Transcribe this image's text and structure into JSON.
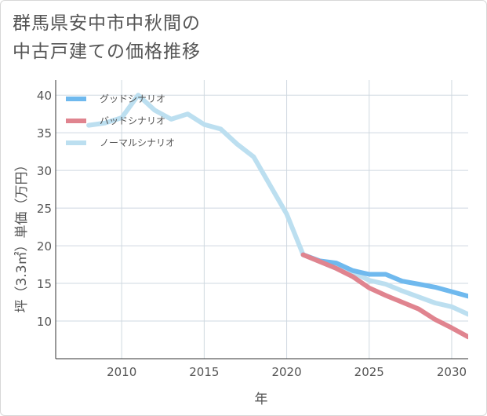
{
  "title_line1": "群馬県安中市中秋間の",
  "title_line2": "中古戸建ての価格推移",
  "chart_data": {
    "type": "line",
    "xlabel": "年",
    "ylabel": "坪（3.3㎡）単価（万円）",
    "xlim": [
      2006,
      2031
    ],
    "ylim": [
      5,
      42
    ],
    "x_ticks": [
      2010,
      2015,
      2020,
      2025,
      2030
    ],
    "y_ticks": [
      10,
      15,
      20,
      25,
      30,
      35,
      40
    ],
    "grid": true,
    "legend_position": "top-left",
    "series": [
      {
        "name": "グッドシナリオ",
        "color": "#6fb9ee",
        "x": [
          2021,
          2022,
          2023,
          2024,
          2025,
          2026,
          2027,
          2028,
          2029,
          2030,
          2031
        ],
        "y": [
          18.8,
          18.0,
          17.7,
          16.7,
          16.2,
          16.2,
          15.3,
          14.9,
          14.5,
          13.9,
          13.3
        ]
      },
      {
        "name": "バッドシナリオ",
        "color": "#e0848f",
        "x": [
          2021,
          2022,
          2023,
          2024,
          2025,
          2026,
          2027,
          2028,
          2029,
          2030,
          2031
        ],
        "y": [
          18.8,
          17.9,
          17.0,
          15.9,
          14.4,
          13.4,
          12.5,
          11.6,
          10.2,
          9.1,
          7.9
        ]
      },
      {
        "name": "ノーマルシナリオ",
        "color": "#bcdff0",
        "x": [
          2008,
          2009,
          2010,
          2011,
          2012,
          2013,
          2014,
          2015,
          2016,
          2017,
          2018,
          2019,
          2020,
          2021,
          2022,
          2023,
          2024,
          2025,
          2026,
          2027,
          2028,
          2029,
          2030,
          2031
        ],
        "y": [
          36.0,
          36.3,
          37.0,
          40.0,
          38.0,
          36.8,
          37.5,
          36.1,
          35.5,
          33.5,
          31.8,
          28.0,
          24.2,
          18.8,
          17.9,
          17.0,
          16.5,
          15.4,
          14.9,
          14.0,
          13.2,
          12.4,
          11.9,
          10.9
        ]
      }
    ]
  }
}
